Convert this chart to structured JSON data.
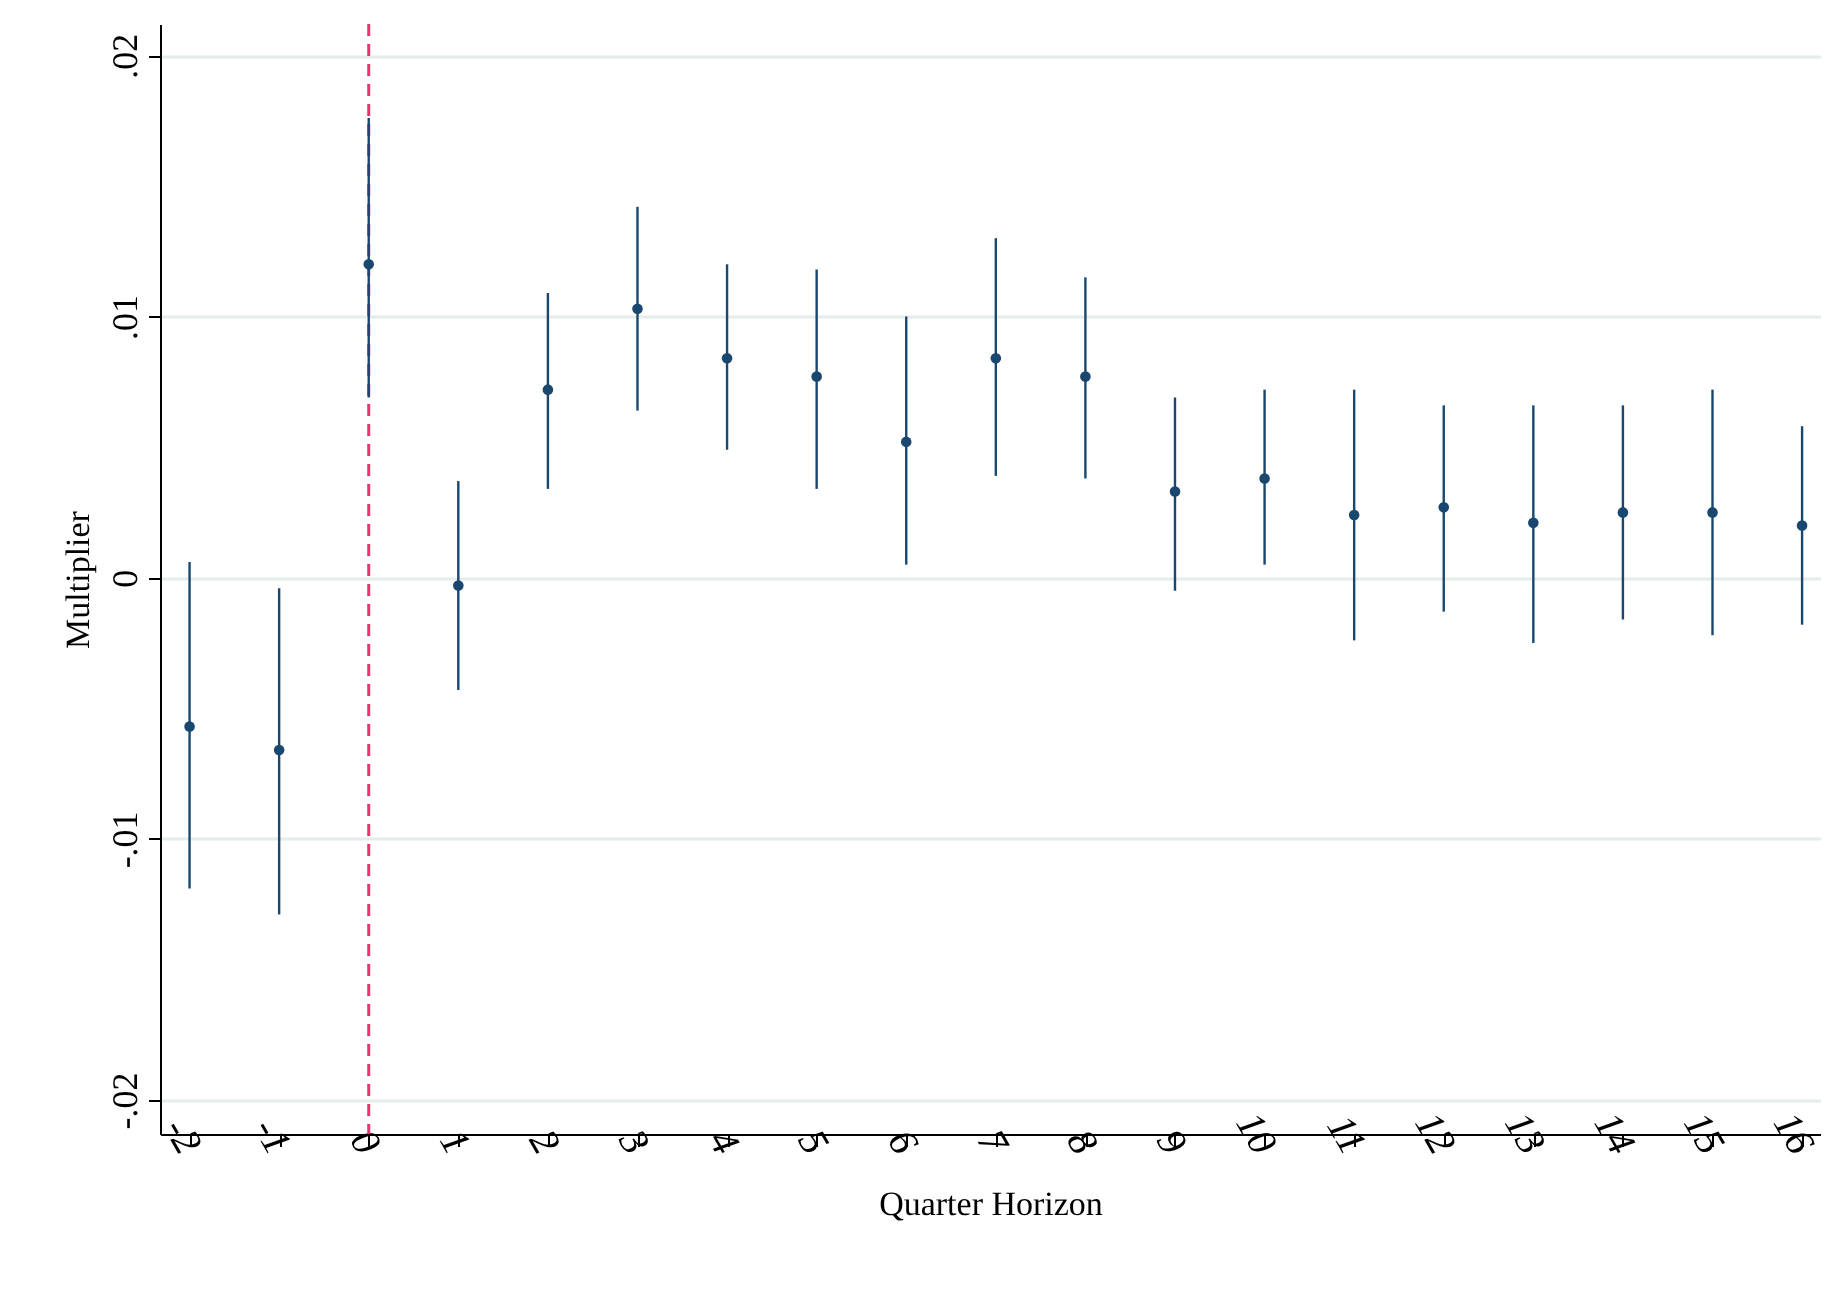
{
  "chart_data": {
    "type": "scatter",
    "xlabel": "Quarter Horizon",
    "ylabel": "Multiplier",
    "x": [
      -2,
      -1,
      0,
      1,
      2,
      3,
      4,
      5,
      6,
      7,
      8,
      9,
      10,
      11,
      12,
      13,
      14,
      15,
      16
    ],
    "values": [
      -0.0057,
      -0.0066,
      0.012,
      -0.0003,
      0.0072,
      0.0103,
      0.0084,
      0.0077,
      0.0052,
      0.0084,
      0.0077,
      0.0033,
      0.0038,
      0.0024,
      0.0027,
      0.0021,
      0.0025,
      0.0025,
      0.002
    ],
    "errors": [
      [
        -0.0119,
        0.0006
      ],
      [
        -0.0129,
        -0.0004
      ],
      [
        0.0069,
        0.0176
      ],
      [
        -0.0043,
        0.0037
      ],
      [
        0.0034,
        0.0109
      ],
      [
        0.0064,
        0.0142
      ],
      [
        0.0049,
        0.012
      ],
      [
        0.0034,
        0.0118
      ],
      [
        0.0005,
        0.01
      ],
      [
        0.0039,
        0.013
      ],
      [
        0.0038,
        0.0115
      ],
      [
        -0.0005,
        0.0069
      ],
      [
        0.0005,
        0.0072
      ],
      [
        -0.0024,
        0.0072
      ],
      [
        -0.0013,
        0.0066
      ],
      [
        -0.0025,
        0.0066
      ],
      [
        -0.0016,
        0.0066
      ],
      [
        -0.0022,
        0.0072
      ],
      [
        -0.0018,
        0.0058
      ]
    ],
    "color": "#1a476f",
    "marker": "circle",
    "xlim": [
      -2.33,
      16.2
    ],
    "ylim": [
      -0.0213,
      0.0212
    ],
    "xticks": [
      -2,
      -1,
      0,
      1,
      2,
      3,
      4,
      5,
      6,
      7,
      8,
      9,
      10,
      11,
      12,
      13,
      14,
      15,
      16
    ],
    "yticks": [
      {
        "value": -0.02,
        "label": "-.02"
      },
      {
        "value": -0.01,
        "label": "-.01"
      },
      {
        "value": 0,
        "label": "0"
      },
      {
        "value": 0.01,
        "label": ".01"
      },
      {
        "value": 0.02,
        "label": ".02"
      }
    ],
    "grid": "y",
    "ref_lines": [
      {
        "axis": "x",
        "value": 0,
        "color": "#e8336b",
        "line_style": "dashed"
      }
    ]
  }
}
